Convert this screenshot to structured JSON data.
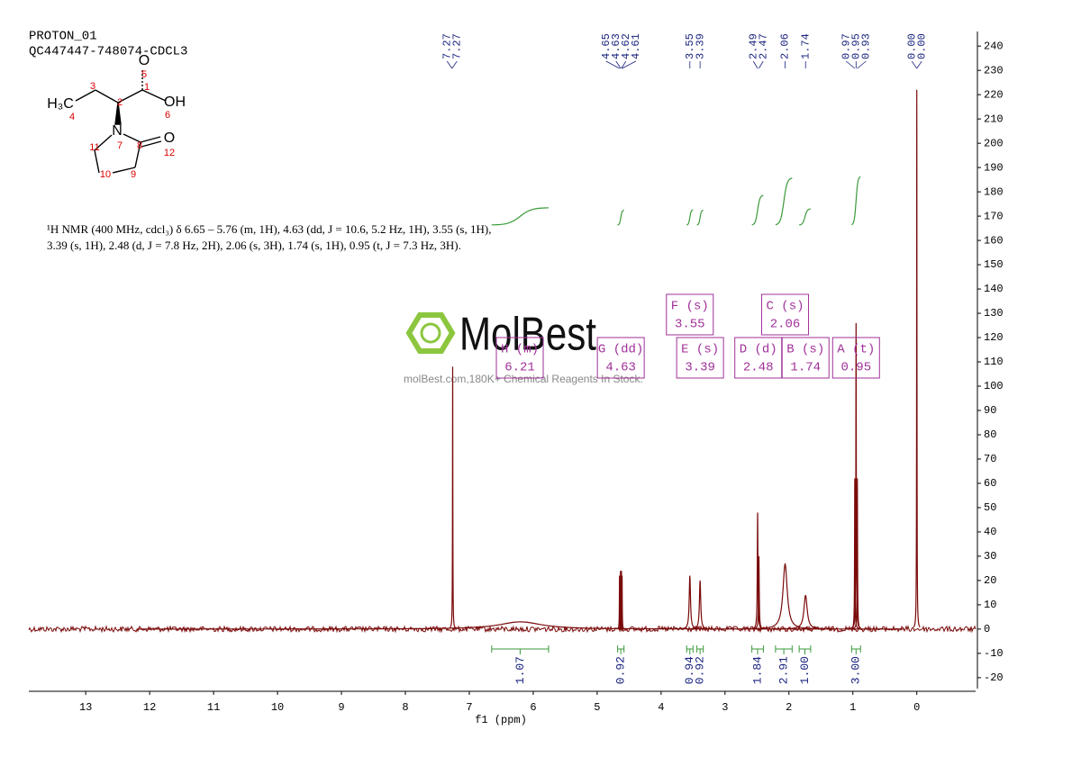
{
  "chart_data": {
    "type": "nmr",
    "title": "PROTON_01",
    "subtitle": "QC447447-748074-CDCL3",
    "x_label": "f1 (ppm)",
    "xlim": [
      13.89,
      -0.92
    ],
    "xticks": [
      13,
      12,
      11,
      10,
      9,
      8,
      7,
      6,
      5,
      4,
      3,
      2,
      1,
      0
    ],
    "ylim": [
      -24.5,
      246
    ],
    "yticks": [
      -20,
      -10,
      0,
      10,
      20,
      30,
      40,
      50,
      60,
      70,
      80,
      90,
      100,
      110,
      120,
      130,
      140,
      150,
      160,
      170,
      180,
      190,
      200,
      210,
      220,
      230,
      240
    ],
    "color": "#7a0a0a",
    "peaks": {
      "x": [
        7.26,
        6.2,
        4.65,
        4.635,
        4.62,
        4.61,
        3.55,
        3.39,
        2.49,
        2.47,
        2.06,
        1.74,
        0.97,
        0.95,
        0.93,
        0.0
      ],
      "heights": [
        108,
        3,
        22,
        24,
        24,
        22,
        22,
        20,
        48,
        30,
        27,
        14,
        62,
        126,
        62,
        222
      ],
      "widths": [
        0.003,
        0.4,
        0.003,
        0.003,
        0.003,
        0.003,
        0.012,
        0.012,
        0.006,
        0.006,
        0.04,
        0.03,
        0.004,
        0.004,
        0.004,
        0.003
      ]
    },
    "peak_labels": [
      "7.27",
      "7.27",
      "4.65",
      "4.63",
      "4.62",
      "4.61",
      "3.55",
      "3.39",
      "2.49",
      "2.47",
      "2.06",
      "1.74",
      "0.97",
      "0.95",
      "0.93",
      "0.00",
      "0.00"
    ],
    "multiplets": {
      "names": [
        "A (t)",
        "B (s)",
        "C (s)",
        "D (d)",
        "E (s)",
        "F (s)",
        "G (dd)",
        "H (m)"
      ],
      "shifts": [
        0.95,
        1.74,
        2.06,
        2.48,
        3.39,
        3.55,
        4.63,
        6.21
      ]
    },
    "integrals": {
      "ranges": [
        [
          6.65,
          5.76
        ],
        [
          4.68,
          4.58
        ],
        [
          3.6,
          3.5
        ],
        [
          3.44,
          3.34
        ],
        [
          2.58,
          2.4
        ],
        [
          2.21,
          1.95
        ],
        [
          1.84,
          1.66
        ],
        [
          1.02,
          0.88
        ]
      ],
      "values": [
        1.07,
        0.92,
        0.94,
        0.92,
        1.84,
        2.91,
        1.0,
        3.0
      ],
      "value_labels": [
        "1.07",
        "0.92",
        "0.94",
        "0.92",
        "1.84",
        "2.91",
        "1.00",
        "3.00"
      ]
    },
    "integral_color": "#3a9a3a",
    "description": [
      "¹H NMR (400 MHz, cdcl₃) δ 6.65 – 5.76 (m, 1H), 4.63 (dd, J = 10.6, 5.2 Hz, 1H), 3.55 (s, 1H),",
      "3.39 (s, 1H), 2.48 (d, J = 7.8 Hz, 2H), 2.06 (s, 3H), 1.74 (s, 1H), 0.95 (t, J = 7.3 Hz, 3H)."
    ]
  },
  "structure": {
    "labels": [
      "O",
      "5",
      "1",
      "OH",
      "6",
      "H₃C",
      "4",
      "3",
      "2",
      "N",
      "7",
      "8",
      "O",
      "12",
      "11",
      "10",
      "9"
    ]
  },
  "watermark": {
    "brand": "MolBest",
    "tagline": "molBest.com,180K+ Chemical Reagents In Stock."
  }
}
